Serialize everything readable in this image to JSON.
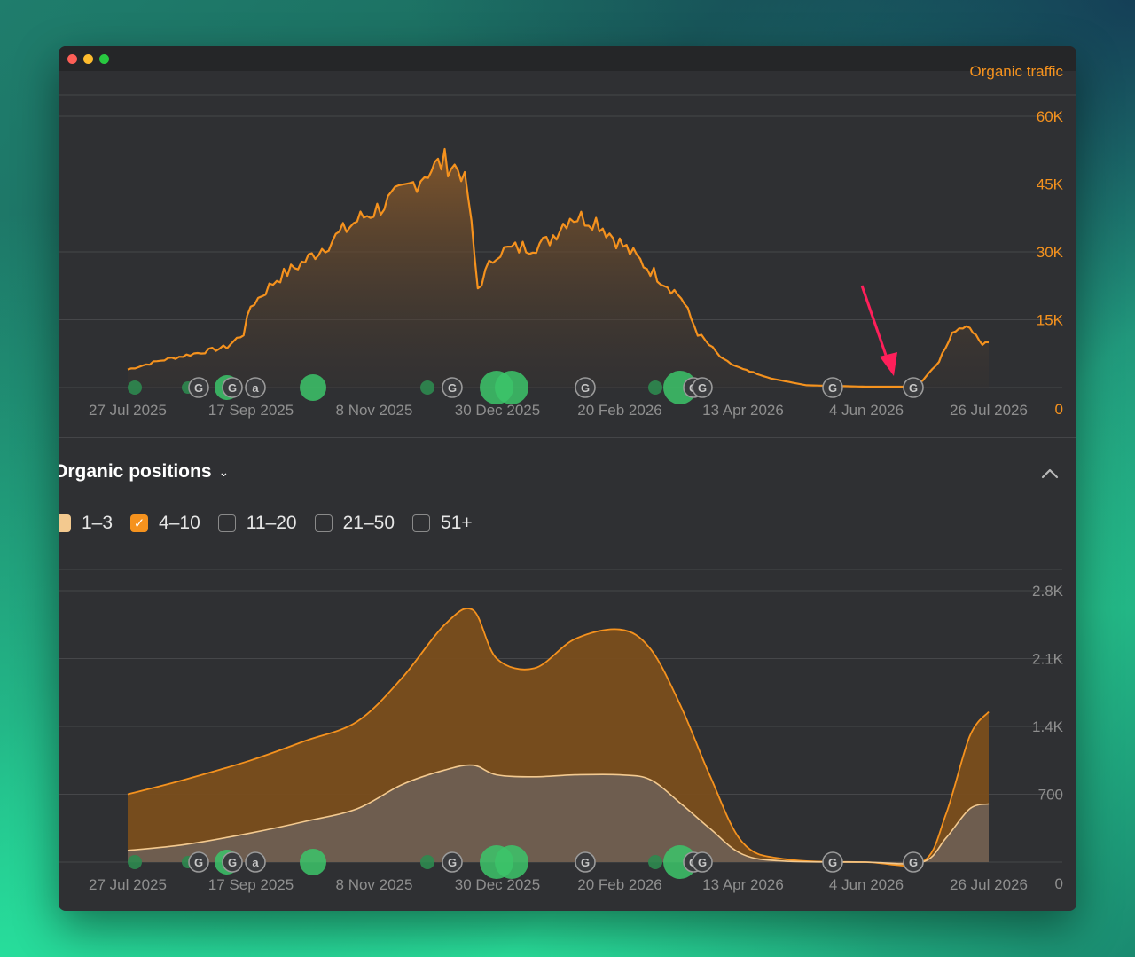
{
  "window": {
    "controls": [
      "close",
      "minimize",
      "zoom"
    ]
  },
  "top_chart": {
    "series_label": "Organic traffic",
    "y_ticks": [
      "60K",
      "45K",
      "30K",
      "15K",
      "0"
    ],
    "x_ticks": [
      "27 Jul 2025",
      "17 Sep 2025",
      "8 Nov 2025",
      "30 Dec 2025",
      "20 Feb 2026",
      "13 Apr 2026",
      "4 Jun 2026",
      "26 Jul 2026"
    ]
  },
  "positions_section": {
    "title": "Organic positions",
    "legend": [
      {
        "label": "1–3",
        "state": "checked-light"
      },
      {
        "label": "4–10",
        "state": "checked"
      },
      {
        "label": "11–20",
        "state": "unchecked"
      },
      {
        "label": "21–50",
        "state": "unchecked"
      },
      {
        "label": "51+",
        "state": "unchecked"
      }
    ],
    "y_ticks": [
      "2.8K",
      "2.1K",
      "1.4K",
      "700",
      "0"
    ],
    "x_ticks": [
      "27 Jul 2025",
      "17 Sep 2025",
      "8 Nov 2025",
      "30 Dec 2025",
      "20 Feb 2026",
      "13 Apr 2026",
      "4 Jun 2026",
      "26 Jul 2026"
    ]
  },
  "colors": {
    "accent": "#f5921e",
    "arrow": "#ff1f5a",
    "marker_green": "#3cc46a",
    "marker_dark": "#2d8a4f",
    "grid": "#46474a",
    "axis_text": "#8f8f8f"
  },
  "chart_data": [
    {
      "type": "area",
      "title": "Organic traffic",
      "x_range": [
        "2025-07-27",
        "2026-07-26"
      ],
      "ylim": [
        0,
        60000
      ],
      "series": [
        {
          "name": "Organic traffic",
          "points": [
            [
              "2025-07-27",
              4000
            ],
            [
              "2025-08-10",
              6000
            ],
            [
              "2025-08-24",
              7500
            ],
            [
              "2025-09-07",
              9000
            ],
            [
              "2025-09-14",
              12000
            ],
            [
              "2025-09-17",
              18000
            ],
            [
              "2025-09-28",
              24000
            ],
            [
              "2025-10-10",
              28000
            ],
            [
              "2025-10-20",
              32000
            ],
            [
              "2025-11-01",
              37000
            ],
            [
              "2025-11-08",
              39000
            ],
            [
              "2025-11-20",
              43000
            ],
            [
              "2025-12-01",
              48000
            ],
            [
              "2025-12-08",
              50000
            ],
            [
              "2025-12-15",
              48000
            ],
            [
              "2025-12-18",
              42000
            ],
            [
              "2025-12-22",
              22000
            ],
            [
              "2025-12-30",
              30000
            ],
            [
              "2026-01-10",
              31000
            ],
            [
              "2026-01-20",
              32000
            ],
            [
              "2026-01-30",
              38000
            ],
            [
              "2026-02-10",
              37000
            ],
            [
              "2026-02-20",
              32000
            ],
            [
              "2026-03-05",
              26000
            ],
            [
              "2026-03-18",
              20000
            ],
            [
              "2026-03-25",
              12000
            ],
            [
              "2026-04-05",
              6000
            ],
            [
              "2026-04-13",
              4000
            ],
            [
              "2026-04-25",
              2000
            ],
            [
              "2026-05-10",
              500
            ],
            [
              "2026-06-04",
              200
            ],
            [
              "2026-06-20",
              200
            ],
            [
              "2026-06-28",
              1500
            ],
            [
              "2026-07-05",
              6000
            ],
            [
              "2026-07-12",
              13000
            ],
            [
              "2026-07-18",
              14000
            ],
            [
              "2026-07-22",
              10000
            ],
            [
              "2026-07-26",
              10000
            ]
          ]
        }
      ],
      "annotation_markers": [
        "green-dot",
        "google-icon",
        "google-icon",
        "a-icon",
        "green-dot",
        "google-icon",
        "green-dot",
        "google-icon",
        "google-icon",
        "google-icon",
        "google-icon"
      ]
    },
    {
      "type": "area",
      "title": "Organic positions",
      "x_range": [
        "2025-07-27",
        "2026-07-26"
      ],
      "ylim": [
        0,
        2800
      ],
      "series": [
        {
          "name": "4–10",
          "points": [
            [
              "2025-07-27",
              700
            ],
            [
              "2025-08-20",
              850
            ],
            [
              "2025-09-17",
              1050
            ],
            [
              "2025-10-10",
              1250
            ],
            [
              "2025-11-01",
              1450
            ],
            [
              "2025-11-20",
              1900
            ],
            [
              "2025-12-08",
              2450
            ],
            [
              "2025-12-20",
              2600
            ],
            [
              "2025-12-30",
              2100
            ],
            [
              "2026-01-15",
              2000
            ],
            [
              "2026-02-01",
              2300
            ],
            [
              "2026-02-20",
              2400
            ],
            [
              "2026-03-05",
              2200
            ],
            [
              "2026-03-18",
              1600
            ],
            [
              "2026-03-30",
              900
            ],
            [
              "2026-04-13",
              200
            ],
            [
              "2026-05-01",
              30
            ],
            [
              "2026-06-04",
              0
            ],
            [
              "2026-06-28",
              0
            ],
            [
              "2026-07-08",
              500
            ],
            [
              "2026-07-18",
              1300
            ],
            [
              "2026-07-26",
              1550
            ]
          ]
        },
        {
          "name": "1–3",
          "points": [
            [
              "2025-07-27",
              120
            ],
            [
              "2025-08-20",
              180
            ],
            [
              "2025-09-17",
              300
            ],
            [
              "2025-10-10",
              420
            ],
            [
              "2025-11-01",
              550
            ],
            [
              "2025-11-20",
              800
            ],
            [
              "2025-12-08",
              950
            ],
            [
              "2025-12-20",
              1000
            ],
            [
              "2025-12-30",
              900
            ],
            [
              "2026-01-15",
              880
            ],
            [
              "2026-02-01",
              900
            ],
            [
              "2026-02-20",
              900
            ],
            [
              "2026-03-05",
              850
            ],
            [
              "2026-03-18",
              600
            ],
            [
              "2026-03-30",
              350
            ],
            [
              "2026-04-13",
              80
            ],
            [
              "2026-05-01",
              10
            ],
            [
              "2026-06-04",
              0
            ],
            [
              "2026-06-28",
              0
            ],
            [
              "2026-07-08",
              250
            ],
            [
              "2026-07-18",
              550
            ],
            [
              "2026-07-26",
              600
            ]
          ]
        }
      ]
    }
  ]
}
